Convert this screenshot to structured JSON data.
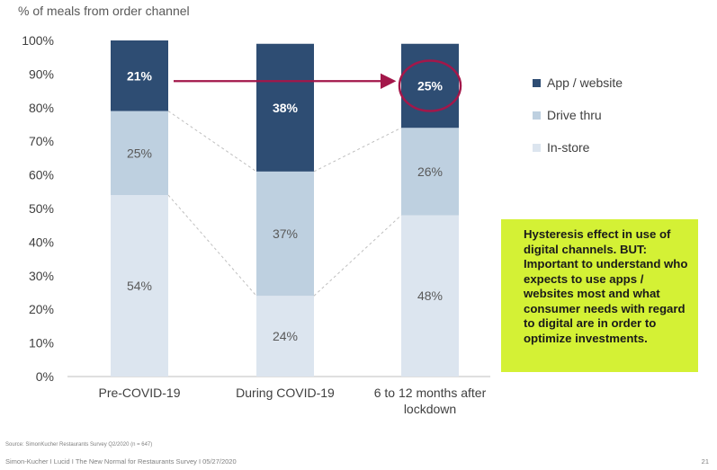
{
  "chart_data": {
    "type": "bar",
    "stacked": true,
    "ylabel": "% of meals from order channel",
    "ylim": [
      0,
      100
    ],
    "yticks": [
      "0%",
      "10%",
      "20%",
      "30%",
      "40%",
      "50%",
      "60%",
      "70%",
      "80%",
      "90%",
      "100%"
    ],
    "categories": [
      [
        "Pre-COVID-19"
      ],
      [
        "During COVID-19"
      ],
      [
        "6 to 12 months after",
        "lockdown"
      ]
    ],
    "series": [
      {
        "name": "In-store",
        "values": [
          54,
          24,
          48
        ],
        "labels": [
          "54%",
          "24%",
          "48%"
        ],
        "color": "#dce5ef",
        "text_color": "#595959"
      },
      {
        "name": "Drive thru",
        "values": [
          25,
          37,
          26
        ],
        "labels": [
          "25%",
          "37%",
          "26%"
        ],
        "color": "#bed0e0",
        "text_color": "#595959"
      },
      {
        "name": "App / website",
        "values": [
          21,
          38,
          25
        ],
        "labels": [
          "21%",
          "38%",
          "25%"
        ],
        "color": "#2e4d73",
        "text_color": "#ffffff"
      }
    ],
    "legend_order": [
      "App / website",
      "Drive thru",
      "In-store"
    ],
    "legend_position": "right",
    "highlight": {
      "from_category": 0,
      "to_category": 2,
      "series": "App / website",
      "color": "#a3174a"
    }
  },
  "callout": {
    "text": "Hysteresis effect in use of digital channels. BUT: Important to understand who expects to use apps / websites most and what consumer needs with regard to digital are in order to optimize investments.",
    "color": "#d4f135"
  },
  "footer": {
    "source": "Source: SimonKucher Restaurants Survey Q2/2020 (n = 647)",
    "left": "Simon-Kucher I Lucid I The New Normal for Restaurants Survey I 05/27/2020",
    "page": "21"
  }
}
